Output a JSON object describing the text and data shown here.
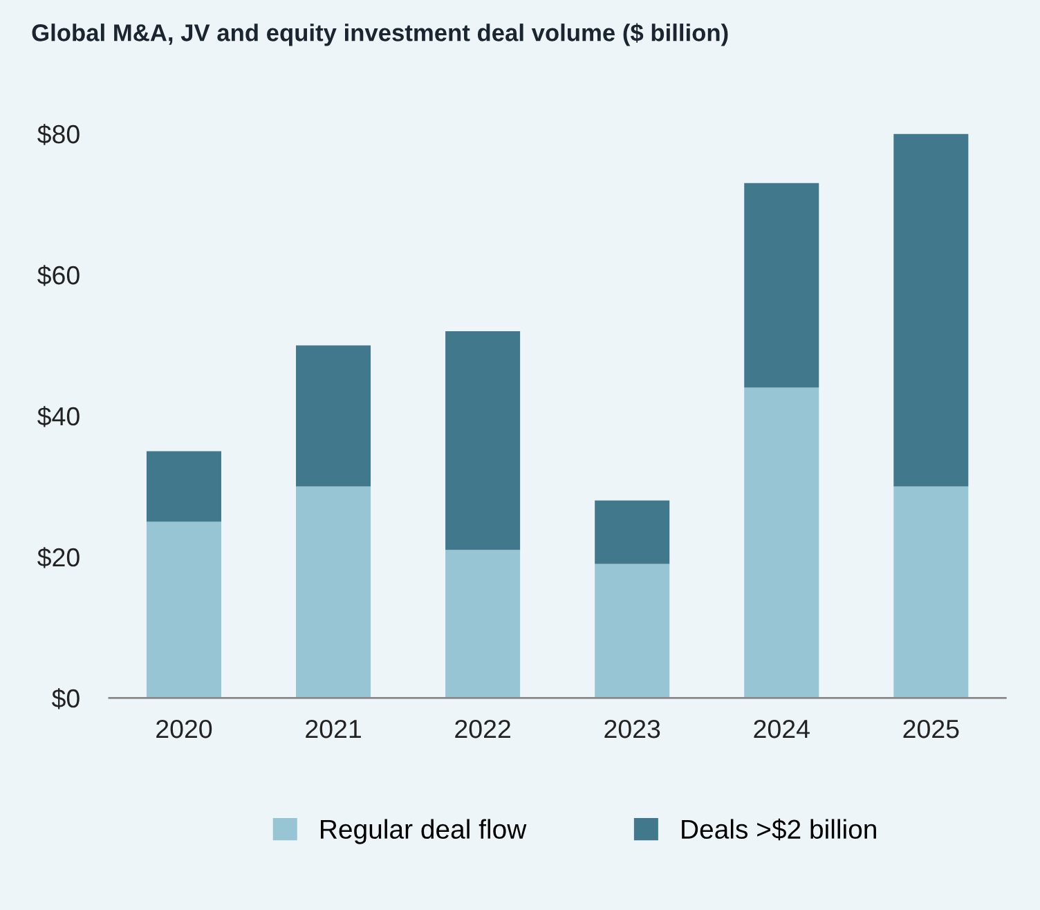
{
  "chart_data": {
    "type": "bar",
    "title": "Global M&A, JV and equity investment deal volume ($ billion)",
    "categories": [
      "2020",
      "2021",
      "2022",
      "2023",
      "2024",
      "2025"
    ],
    "series": [
      {
        "name": "Regular deal flow",
        "color": "#97c5d4",
        "values": [
          25,
          30,
          21,
          19,
          44,
          30
        ]
      },
      {
        "name": "Deals >$2 billion",
        "color": "#41788c",
        "values": [
          10,
          20,
          31,
          9,
          29,
          50
        ]
      }
    ],
    "stacked": true,
    "ylim": [
      0,
      80
    ],
    "yticks": [
      {
        "value": 0,
        "label": "$0"
      },
      {
        "value": 20,
        "label": "$20"
      },
      {
        "value": 40,
        "label": "$40"
      },
      {
        "value": 60,
        "label": "$60"
      },
      {
        "value": 80,
        "label": "$80"
      }
    ],
    "grid": false,
    "legend": "bottom"
  }
}
